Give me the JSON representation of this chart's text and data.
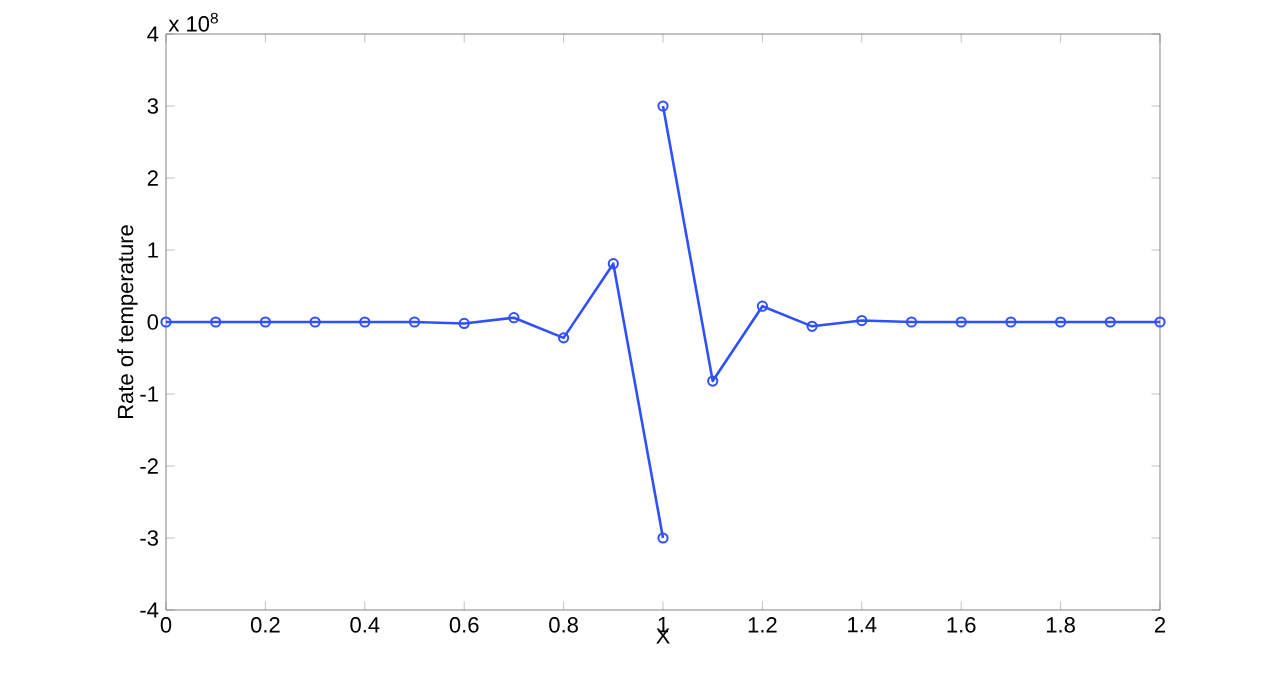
{
  "chart_data": {
    "type": "line",
    "xlabel": "X",
    "ylabel": "Rate of temperature",
    "annotations": [
      "x 10$^{8}$"
    ],
    "series": [
      {
        "color": "#3050ff",
        "x": [
          0,
          0.1,
          0.2,
          0.3,
          0.4,
          0.5,
          0.6,
          0.7,
          0.8,
          0.9,
          1
        ],
        "values": [
          0,
          0,
          0,
          0,
          0,
          0,
          -0.02,
          0.06,
          -0.22,
          0.81,
          -3
        ]
      },
      {
        "color": "#3050ff",
        "x": [
          1,
          1.1,
          1.2,
          1.3,
          1.4,
          1.5,
          1.6,
          1.7,
          1.8,
          1.9,
          2
        ],
        "values": [
          3,
          -0.82,
          0.22,
          -0.06,
          0.02,
          0,
          0,
          0,
          0,
          0,
          0
        ]
      }
    ],
    "xlim": [
      0,
      2
    ],
    "xticks": [
      0,
      0.2,
      0.4,
      0.6,
      0.8,
      1,
      1.2,
      1.4,
      1.6,
      1.8,
      2
    ],
    "ylim": [
      -4,
      4
    ],
    "yticks": [
      -4,
      -3,
      -2,
      -1,
      0,
      1,
      2,
      3,
      4
    ],
    "grid": false,
    "marker": "circle",
    "line_style": "solid"
  }
}
